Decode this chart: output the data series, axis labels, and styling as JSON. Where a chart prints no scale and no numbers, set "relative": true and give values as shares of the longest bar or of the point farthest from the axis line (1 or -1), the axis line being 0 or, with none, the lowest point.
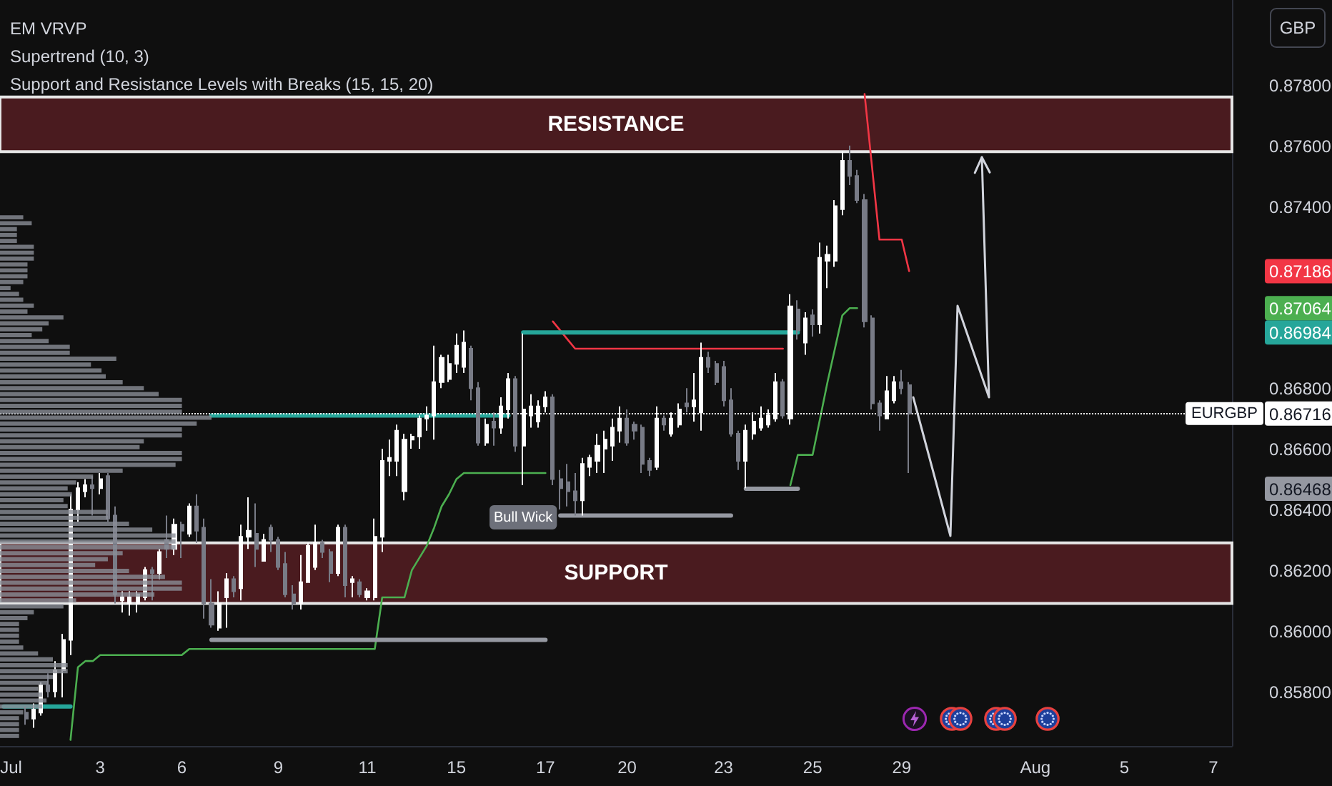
{
  "chart_data": [
    {
      "type": "candlestick",
      "annotations": [
        "EM VRVP",
        "Supertrend (10, 3)",
        "Support and Resistance Levels with Breaks (15, 15, 20)",
        {
          "text": "Bull Wick",
          "y": 0.8648
        }
      ],
      "ylabel": "GBP",
      "categories": [
        null,
        "Jul",
        null,
        null,
        null,
        null,
        null,
        null,
        null,
        null,
        null,
        null,
        null,
        "3",
        null,
        null,
        null,
        null,
        null,
        null,
        null,
        null,
        null,
        null,
        "6",
        null,
        null,
        null,
        null,
        null,
        null,
        null,
        null,
        null,
        null,
        null,
        null,
        "9",
        null,
        null,
        null,
        null,
        null,
        null,
        null,
        null,
        null,
        null,
        null,
        "11",
        null,
        null,
        null,
        null,
        null,
        null,
        null,
        null,
        null,
        null,
        null,
        "15",
        null,
        null,
        null,
        null,
        null,
        null,
        null,
        null,
        null,
        null,
        null,
        "17",
        null,
        null,
        null,
        null,
        null,
        null,
        null,
        null,
        null,
        null,
        "20",
        null,
        null,
        null,
        null,
        null,
        null,
        null,
        null,
        null,
        null,
        null,
        null,
        "23",
        null,
        null,
        null,
        null,
        null,
        null,
        null,
        null,
        null,
        null,
        null,
        "25",
        null,
        null,
        null,
        null,
        null,
        null,
        null,
        null,
        null,
        null,
        null,
        "29",
        null,
        null,
        null,
        null,
        null,
        null,
        null,
        null,
        null,
        null,
        null,
        null,
        null,
        null,
        null,
        null,
        null,
        "Aug",
        null,
        null,
        null,
        null,
        null,
        null,
        null,
        null,
        null,
        null,
        null,
        "5",
        null,
        null,
        null,
        null,
        null,
        null,
        null,
        null,
        null,
        null,
        null,
        "7",
        null,
        null
      ],
      "ohlc": [
        null,
        null,
        null,
        [
          0.8573,
          0.8575,
          0.8569,
          0.8571
        ],
        [
          0.8571,
          0.8576,
          0.8568,
          0.8574
        ],
        [
          0.8573,
          0.8583,
          0.8572,
          0.8582
        ],
        [
          0.8582,
          0.8586,
          0.8578,
          0.858
        ],
        [
          0.858,
          0.859,
          0.8578,
          0.8587
        ],
        [
          0.8587,
          0.8599,
          0.8578,
          0.8597
        ],
        [
          0.8597,
          0.8645,
          0.8592,
          0.864
        ],
        [
          0.864,
          0.8649,
          0.8636,
          0.8647
        ],
        [
          0.8646,
          0.865,
          0.8644,
          0.8648
        ],
        [
          0.8648,
          0.8651,
          0.8638,
          0.8647
        ],
        [
          0.8647,
          0.8652,
          0.8645,
          0.865
        ],
        [
          0.8651,
          0.8652,
          0.8636,
          0.8637
        ],
        [
          0.8638,
          0.8641,
          0.8609,
          0.8612
        ],
        [
          0.861,
          0.8613,
          0.8606,
          0.8611
        ],
        [
          0.8609,
          0.8613,
          0.8605,
          0.8611
        ],
        [
          0.8609,
          0.8613,
          0.8606,
          0.8612
        ],
        [
          0.8611,
          0.8621,
          0.861,
          0.862
        ],
        [
          0.862,
          0.8621,
          0.861,
          0.8619
        ],
        [
          0.8619,
          0.8627,
          0.8617,
          0.8626
        ],
        [
          0.863,
          0.8638,
          0.8624,
          0.8627
        ],
        [
          0.8627,
          0.8637,
          0.8625,
          0.8635
        ],
        [
          0.8635,
          0.8636,
          0.8624,
          0.8633
        ],
        [
          0.8632,
          0.8642,
          0.8631,
          0.8641
        ],
        [
          0.8641,
          0.8645,
          0.8629,
          0.8633
        ],
        [
          0.8634,
          0.8637,
          0.8604,
          0.8609
        ],
        [
          0.8609,
          0.8617,
          0.8601,
          0.8602
        ],
        [
          0.8601,
          0.8613,
          0.86,
          0.8609
        ],
        [
          0.8611,
          0.8619,
          0.8601,
          0.8617
        ],
        [
          0.8617,
          0.8618,
          0.8611,
          0.8613
        ],
        [
          0.8614,
          0.8635,
          0.861,
          0.8631
        ],
        [
          0.8631,
          0.8644,
          0.8627,
          0.8633
        ],
        [
          0.8632,
          0.8642,
          0.8621,
          0.8627
        ],
        [
          0.8623,
          0.8632,
          0.8623,
          0.863
        ],
        [
          0.8634,
          0.8635,
          0.8626,
          0.863
        ],
        [
          0.863,
          0.8631,
          0.862,
          0.8621
        ],
        [
          0.8622,
          0.8626,
          0.8611,
          0.8612
        ],
        [
          0.8612,
          0.8615,
          0.8607,
          0.8609
        ],
        [
          0.8609,
          0.8625,
          0.8607,
          0.8616
        ],
        [
          0.8616,
          0.8629,
          0.8616,
          0.8628
        ],
        [
          0.8621,
          0.8635,
          0.862,
          0.8629
        ],
        [
          0.8629,
          0.863,
          0.8624,
          0.8626
        ],
        [
          0.8626,
          0.8627,
          0.8616,
          0.8619
        ],
        [
          0.8619,
          0.8635,
          0.8618,
          0.8634
        ],
        [
          0.8634,
          0.8635,
          0.8611,
          0.8615
        ],
        [
          0.8616,
          0.8618,
          0.8611,
          0.8617
        ],
        [
          0.8616,
          0.8617,
          0.8611,
          0.8612
        ],
        [
          0.8611,
          0.8614,
          0.861,
          0.8613
        ],
        [
          0.8611,
          0.8637,
          0.861,
          0.8631
        ],
        [
          0.8631,
          0.866,
          0.8626,
          0.8656
        ],
        [
          0.8656,
          0.8663,
          0.8651,
          0.8657
        ],
        [
          0.8656,
          0.8668,
          0.8651,
          0.8666
        ],
        [
          0.8646,
          0.8665,
          0.8643,
          0.8663
        ],
        [
          0.8663,
          0.8665,
          0.866,
          0.8664
        ],
        [
          0.8664,
          0.8671,
          0.866,
          0.867
        ],
        [
          0.867,
          0.8674,
          0.8666,
          0.8671
        ],
        [
          0.8671,
          0.8694,
          0.8663,
          0.8682
        ],
        [
          0.8682,
          0.8691,
          0.868,
          0.869
        ],
        [
          0.8683,
          0.8691,
          0.8682,
          0.8688
        ],
        [
          0.8688,
          0.8698,
          0.8685,
          0.8694
        ],
        [
          0.8687,
          0.8699,
          0.8685,
          0.8695
        ],
        [
          0.8693,
          0.8694,
          0.8676,
          0.868
        ],
        [
          0.868,
          0.8682,
          0.8661,
          0.8662
        ],
        [
          0.8662,
          0.867,
          0.8661,
          0.8668
        ],
        [
          0.8669,
          0.8672,
          0.8661,
          0.8667
        ],
        [
          0.8667,
          0.8677,
          0.8665,
          0.8674
        ],
        [
          0.8673,
          0.8685,
          0.867,
          0.8683
        ],
        [
          0.8683,
          0.8684,
          0.8659,
          0.8661
        ],
        [
          0.8661,
          0.8698,
          0.8648,
          0.8673
        ],
        [
          0.8671,
          0.8678,
          0.8667,
          0.8674
        ],
        [
          0.8669,
          0.8676,
          0.8667,
          0.8674
        ],
        [
          0.8674,
          0.8679,
          0.8672,
          0.8677
        ],
        [
          0.8677,
          0.8678,
          0.8648,
          0.865
        ],
        [
          0.865,
          0.8653,
          0.864,
          0.8647
        ],
        [
          0.8649,
          0.8655,
          0.8641,
          0.8646
        ],
        [
          0.8646,
          0.8652,
          0.8638,
          0.8643
        ],
        [
          0.8643,
          0.8657,
          0.8638,
          0.8655
        ],
        [
          0.8654,
          0.8658,
          0.8651,
          0.8657
        ],
        [
          0.8656,
          0.8665,
          0.8652,
          0.8661
        ],
        [
          0.866,
          0.8666,
          0.8652,
          0.8663
        ],
        [
          0.8661,
          0.867,
          0.8656,
          0.8667
        ],
        [
          0.8666,
          0.8674,
          0.8662,
          0.867
        ],
        [
          0.867,
          0.8673,
          0.8661,
          0.8662
        ],
        [
          0.8668,
          0.8669,
          0.8663,
          0.8666
        ],
        [
          0.8667,
          0.8668,
          0.8652,
          0.8655
        ],
        [
          0.8656,
          0.8657,
          0.8651,
          0.8653
        ],
        [
          0.8654,
          0.8674,
          0.8653,
          0.867
        ],
        [
          0.867,
          0.8671,
          0.8666,
          0.8668
        ],
        [
          0.8665,
          0.8672,
          0.8664,
          0.867
        ],
        [
          0.8668,
          0.8675,
          0.8667,
          0.8673
        ],
        [
          0.8675,
          0.868,
          0.8672,
          0.8674
        ],
        [
          0.8674,
          0.8685,
          0.8669,
          0.8676
        ],
        [
          0.8672,
          0.8695,
          0.8666,
          0.869
        ],
        [
          0.869,
          0.8692,
          0.8685,
          0.8687
        ],
        [
          0.8688,
          0.8689,
          0.8681,
          0.8682
        ],
        [
          0.8687,
          0.8689,
          0.8674,
          0.8676
        ],
        [
          0.8676,
          0.868,
          0.8664,
          0.8665
        ],
        [
          0.8665,
          0.8666,
          0.8653,
          0.8656
        ],
        [
          0.8656,
          0.8668,
          0.8647,
          0.8666
        ],
        [
          0.8665,
          0.8672,
          0.8663,
          0.8669
        ],
        [
          0.8667,
          0.8674,
          0.8666,
          0.867
        ],
        [
          0.8668,
          0.8673,
          0.8667,
          0.8671
        ],
        [
          0.867,
          0.8685,
          0.8669,
          0.8682
        ],
        [
          0.8682,
          0.8683,
          0.867,
          0.8671
        ],
        [
          0.867,
          0.8711,
          0.8668,
          0.8707
        ],
        [
          0.8706,
          0.8709,
          0.8696,
          0.8699
        ],
        [
          0.8695,
          0.8705,
          0.8691,
          0.8703
        ],
        [
          0.8704,
          0.8706,
          0.8697,
          0.8701
        ],
        [
          0.8701,
          0.8728,
          0.8698,
          0.8723
        ],
        [
          0.8722,
          0.8727,
          0.8713,
          0.8724
        ],
        [
          0.8722,
          0.8742,
          0.872,
          0.874
        ],
        [
          0.8739,
          0.8758,
          0.8737,
          0.8755
        ],
        [
          0.8755,
          0.876,
          0.8747,
          0.875
        ],
        [
          0.875,
          0.8752,
          0.8741,
          0.8742
        ],
        [
          0.8742,
          0.8744,
          0.87,
          0.8702
        ],
        [
          0.8703,
          0.8704,
          0.8673,
          0.8675
        ],
        [
          0.8675,
          0.8676,
          0.8666,
          0.8671
        ],
        [
          0.867,
          0.8684,
          0.867,
          0.8679
        ],
        [
          0.8676,
          0.8684,
          0.8675,
          0.8682
        ],
        [
          0.8682,
          0.8686,
          0.8678,
          0.868
        ],
        [
          0.8681,
          0.8682,
          0.8652,
          0.86716
        ],
        null,
        null,
        null,
        null,
        null,
        null,
        null,
        null,
        null,
        null,
        null,
        null,
        null,
        null,
        null,
        null,
        null,
        null,
        null,
        null,
        null,
        null,
        null,
        null,
        null,
        null,
        null,
        null,
        null,
        null,
        null,
        null,
        null,
        null,
        null,
        null,
        null,
        null,
        null,
        null,
        null,
        null,
        null
      ],
      "colors": [
        null,
        null,
        null,
        "#787b86",
        "#ffffff",
        "#ffffff",
        "#787b86",
        "#ffffff",
        "#ffffff",
        "#ffffff",
        "#ffffff",
        "#ffffff",
        "#787b86",
        "#ffffff",
        "#787b86",
        "#787b86",
        "#ffffff",
        "#ffffff",
        "#ffffff",
        "#ffffff",
        "#787b86",
        "#ffffff",
        "#787b86",
        "#ffffff",
        "#787b86",
        "#ffffff",
        "#787b86",
        "#787b86",
        "#787b86",
        "#ffffff",
        "#ffffff",
        "#787b86",
        "#ffffff",
        "#ffffff",
        "#787b86",
        "#ffffff",
        "#787b86",
        "#787b86",
        "#787b86",
        "#787b86",
        "#ffffff",
        "#ffffff",
        "#ffffff",
        "#787b86",
        "#787b86",
        "#ffffff",
        "#787b86",
        "#ffffff",
        "#787b86",
        "#ffffff",
        "#ffffff",
        "#ffffff",
        "#ffffff",
        "#ffffff",
        "#ffffff",
        "#ffffff",
        "#ffffff",
        "#ffffff",
        "#ffffff",
        "#ffffff",
        "#ffffff",
        "#ffffff",
        "#ffffff",
        "#787b86",
        "#787b86",
        "#ffffff",
        "#787b86",
        "#ffffff",
        "#ffffff",
        "#787b86",
        "#ffffff",
        "#ffffff",
        "#ffffff",
        "#ffffff",
        "#787b86",
        "#787b86",
        "#787b86",
        "#787b86",
        "#ffffff",
        "#ffffff",
        "#ffffff",
        "#ffffff",
        "#ffffff",
        "#ffffff",
        "#787b86",
        "#787b86",
        "#787b86",
        "#787b86",
        "#ffffff",
        "#787b86",
        "#ffffff",
        "#ffffff",
        "#787b86",
        "#ffffff",
        "#ffffff",
        "#787b86",
        "#787b86",
        "#787b86",
        "#787b86",
        "#787b86",
        "#ffffff",
        "#ffffff",
        "#ffffff",
        "#ffffff",
        "#ffffff",
        "#787b86",
        "#ffffff",
        "#787b86",
        "#ffffff",
        "#787b86",
        "#ffffff",
        "#ffffff",
        "#ffffff",
        "#ffffff",
        "#787b86",
        "#787b86",
        "#787b86",
        "#787b86",
        "#787b86",
        "#ffffff",
        "#ffffff",
        "#787b86",
        "#787b86",
        null,
        null,
        null,
        null,
        null,
        null,
        null,
        null,
        null,
        null,
        null,
        null,
        null,
        null,
        null,
        null,
        null,
        null,
        null,
        null,
        null,
        null,
        null,
        null,
        null,
        null,
        null,
        null,
        null,
        null,
        null,
        null,
        null,
        null,
        null,
        null,
        null,
        null,
        null,
        null,
        null,
        null,
        null
      ],
      "series": [
        {
          "type": "line",
          "color": "#4caf50",
          "values": [
            null,
            null,
            null,
            null,
            null,
            null,
            null,
            null,
            null,
            0.8564,
            0.8588,
            0.859,
            0.859,
            0.8592,
            0.8592,
            0.8592,
            0.8592,
            0.8592,
            0.8592,
            0.8592,
            0.8592,
            0.8592,
            0.8592,
            0.8592,
            0.8592,
            0.8594,
            0.8594,
            0.8594,
            0.8594,
            0.8594,
            0.8594,
            0.8594,
            0.8594,
            0.8594,
            0.8594,
            0.8594,
            0.8594,
            0.8594,
            0.8594,
            0.8594,
            0.8594,
            0.8594,
            0.8594,
            0.8594,
            0.8594,
            0.8594,
            0.8594,
            0.8594,
            0.8594,
            0.8594,
            0.8594,
            0.8611,
            0.8611,
            0.8611,
            0.8611,
            0.862,
            0.8624,
            0.8628,
            0.8634,
            0.8641,
            0.8645,
            0.865,
            0.8652,
            0.8652,
            0.8652,
            0.8652,
            0.8652,
            0.8652,
            0.8652,
            0.8652,
            0.8652,
            0.8652,
            0.8652,
            0.8652,
            null,
            null,
            null,
            null,
            null,
            null,
            null,
            null,
            null,
            null,
            null,
            null,
            null,
            null,
            null,
            null,
            null,
            null,
            null,
            null,
            null,
            null,
            null,
            null,
            null,
            null,
            null,
            null,
            null,
            null,
            null,
            null,
            0.8648,
            0.8658,
            0.8658,
            0.8658,
            0.867,
            0.8682,
            0.8693,
            0.8704,
            0.87064,
            0.87064,
            null,
            null,
            null,
            null,
            null,
            null,
            null,
            null,
            null,
            null,
            null,
            null,
            null,
            null,
            null,
            null,
            null,
            null,
            null,
            null,
            null,
            null,
            null,
            null,
            null,
            null,
            null,
            null,
            null,
            null,
            null,
            null,
            null,
            null,
            null,
            null,
            null,
            null,
            null,
            null,
            null,
            null,
            null,
            null,
            null,
            null,
            null,
            null,
            null,
            null
          ]
        },
        {
          "type": "line",
          "color": "#f23645",
          "values": [
            null,
            null,
            null,
            null,
            null,
            null,
            null,
            null,
            null,
            null,
            null,
            null,
            null,
            null,
            null,
            null,
            null,
            null,
            null,
            null,
            null,
            null,
            null,
            null,
            null,
            null,
            null,
            null,
            null,
            null,
            null,
            null,
            null,
            null,
            null,
            null,
            null,
            null,
            null,
            null,
            null,
            null,
            null,
            null,
            null,
            null,
            null,
            null,
            null,
            null,
            null,
            null,
            null,
            null,
            null,
            null,
            null,
            null,
            null,
            null,
            null,
            null,
            null,
            null,
            null,
            null,
            null,
            null,
            null,
            null,
            null,
            null,
            null,
            null,
            0.8702,
            0.8699,
            0.8696,
            0.8693,
            0.8693,
            0.8693,
            0.8693,
            0.8693,
            0.8693,
            0.8693,
            0.8693,
            0.8693,
            0.8693,
            0.8693,
            0.8693,
            0.8693,
            0.8693,
            0.8693,
            0.8693,
            0.8693,
            0.8693,
            0.8693,
            0.8693,
            0.8693,
            0.8693,
            0.8693,
            0.8693,
            0.8693,
            0.8693,
            0.8693,
            0.8693,
            0.8693,
            null,
            null,
            null,
            null,
            null,
            null,
            null,
            null,
            null,
            null,
            0.8777,
            0.8753,
            0.8729,
            0.8729,
            0.8729,
            0.8729,
            0.87186,
            null,
            null,
            null,
            null,
            null,
            null,
            null,
            null,
            null,
            null,
            null,
            null,
            null,
            null,
            null,
            null,
            null,
            null,
            null,
            null,
            null,
            null,
            null,
            null,
            null,
            null,
            null,
            null,
            null,
            null,
            null,
            null,
            null,
            null,
            null,
            null,
            null,
            null,
            null,
            null,
            null,
            null,
            null
          ]
        },
        {
          "type": "line",
          "color": "#26a69a",
          "values": [
            0.8575,
            0.8575,
            0.8575,
            0.8575,
            0.8575,
            0.8575,
            0.8575,
            0.8575,
            0.8575,
            0.8575,
            null,
            null,
            null,
            null,
            null,
            null,
            null,
            null,
            null,
            null,
            null,
            null,
            null,
            null,
            null,
            null,
            null,
            null,
            0.8671,
            0.8671,
            0.8671,
            0.8671,
            0.8671,
            0.8671,
            0.8671,
            0.8671,
            0.8671,
            0.8671,
            0.8671,
            0.8671,
            0.8671,
            0.8671,
            0.8671,
            0.8671,
            0.8671,
            0.8671,
            0.8671,
            0.8671,
            0.8671,
            0.8671,
            0.8671,
            0.8671,
            0.8671,
            0.8671,
            0.8671,
            0.8671,
            0.8671,
            0.8671,
            0.8671,
            0.8671,
            0.8671,
            0.8671,
            0.8671,
            0.8671,
            0.8671,
            0.8671,
            0.8671,
            0.8671,
            0.8671,
            null,
            0.86984,
            0.86984,
            0.86984,
            0.86984,
            0.86984,
            0.86984,
            0.86984,
            0.86984,
            0.86984,
            0.86984,
            0.86984,
            0.86984,
            0.86984,
            0.86984,
            0.86984,
            0.86984,
            0.86984,
            0.86984,
            0.86984,
            0.86984,
            0.86984,
            0.86984,
            0.86984,
            0.86984,
            0.86984,
            0.86984,
            0.86984,
            0.86984,
            0.86984,
            0.86984,
            0.86984,
            0.86984,
            0.86984,
            0.86984,
            0.86984,
            0.86984,
            0.86984,
            0.86984,
            null,
            null,
            null,
            null,
            null,
            null,
            null,
            null,
            null,
            null,
            null,
            null,
            null,
            null,
            null,
            null,
            null,
            null,
            null,
            null,
            null,
            null,
            null,
            null,
            null,
            null,
            null,
            null,
            null,
            null,
            null,
            null,
            null,
            null,
            null,
            null,
            null,
            null,
            null,
            null,
            null,
            null,
            null,
            null,
            null,
            null,
            null,
            null,
            null,
            null,
            null,
            null,
            null,
            null,
            null,
            null,
            null,
            null
          ]
        },
        {
          "type": "line",
          "color": "#9598a1",
          "values": [
            null,
            null,
            null,
            null,
            null,
            null,
            null,
            null,
            null,
            null,
            null,
            null,
            null,
            null,
            null,
            null,
            null,
            null,
            null,
            null,
            null,
            null,
            null,
            null,
            null,
            null,
            null,
            null,
            0.8597,
            0.8597,
            0.8597,
            0.8597,
            0.8597,
            0.8597,
            0.8597,
            0.8597,
            0.8597,
            0.8597,
            0.8597,
            0.8597,
            0.8597,
            0.8597,
            0.8597,
            0.8597,
            0.8597,
            0.8597,
            0.8597,
            0.8597,
            0.8597,
            0.8597,
            0.8597,
            0.8597,
            0.8597,
            0.8597,
            0.8597,
            0.8597,
            0.8597,
            0.8597,
            0.8597,
            0.8597,
            0.8597,
            0.8597,
            0.8597,
            0.8597,
            0.8597,
            0.8597,
            0.8597,
            0.8597,
            0.8597,
            0.8597,
            0.8597,
            0.8597,
            0.8597,
            0.8597,
            null,
            0.8638,
            0.8638,
            0.8638,
            0.8638,
            0.8638,
            0.8638,
            0.8638,
            0.8638,
            0.8638,
            0.8638,
            0.8638,
            0.8638,
            0.8638,
            0.8638,
            0.8638,
            0.8638,
            0.8638,
            0.8638,
            0.8638,
            0.8638,
            0.8638,
            0.8638,
            0.8638,
            0.8638,
            null,
            0.86468,
            0.86468,
            0.86468,
            0.86468,
            0.86468,
            0.86468,
            0.86468,
            0.86468,
            null,
            null,
            null,
            null,
            null,
            null,
            null,
            null,
            null,
            null,
            null,
            null,
            null,
            null,
            null,
            null,
            null,
            null,
            null,
            null,
            null,
            null,
            null,
            null,
            null,
            null,
            null,
            null,
            null,
            null,
            null,
            null,
            null,
            null,
            null,
            null,
            null,
            null,
            null,
            null,
            null,
            null,
            null,
            null,
            null,
            null,
            null,
            null,
            null,
            null,
            null,
            null,
            null,
            null,
            null,
            null,
            null,
            null
          ]
        }
      ],
      "ylim": [
        0.8562,
        0.8808
      ],
      "yticks": [
        {
          "value": 0.858,
          "label": "0.85800"
        },
        {
          "value": 0.86,
          "label": "0.86000"
        },
        {
          "value": 0.862,
          "label": "0.86200"
        },
        {
          "value": 0.864,
          "label": "0.86400"
        },
        0.86468,
        {
          "value": 0.866,
          "label": "0.86600"
        },
        0.86716,
        {
          "value": 0.868,
          "label": "0.86800"
        },
        0.86984,
        0.87064,
        0.87186,
        {
          "value": 0.874,
          "label": "0.87400"
        },
        {
          "value": 0.876,
          "label": "0.87600"
        },
        {
          "value": 0.878,
          "label": "0.87800"
        }
      ],
      "ref_lines": [
        {
          "axis": "y",
          "value": 0.86716,
          "label": "EURGBP",
          "color": "#ffffff",
          "line_style": "dotted"
        }
      ],
      "bands": [
        {
          "axis": "y",
          "from": 0.8758,
          "to": 0.8776,
          "label": "RESISTANCE",
          "color": "#4a1b1f"
        },
        {
          "axis": "y",
          "from": 0.8609,
          "to": 0.8629,
          "label": "SUPPORT",
          "color": "#4a1b1f"
        }
      ]
    },
    {
      "type": "bar",
      "orientation": "horizontal",
      "relative": true,
      "color": "#8a8d96",
      "categories": [
        null,
        null,
        null,
        null,
        null,
        null,
        null,
        null,
        null,
        null,
        null,
        null,
        null,
        null,
        null,
        null,
        null,
        null,
        null,
        null,
        null,
        null,
        null,
        null,
        null,
        null,
        null,
        null,
        null,
        null,
        null,
        null,
        null,
        null,
        null,
        null,
        null,
        null,
        null,
        null,
        null,
        null,
        null,
        null,
        null,
        null,
        null,
        null,
        null,
        null,
        null,
        null,
        null,
        null,
        null,
        null,
        null,
        null,
        null,
        null,
        null,
        null,
        null,
        null,
        null,
        null,
        null,
        null,
        null,
        null,
        null,
        null,
        null,
        null,
        null,
        null,
        null,
        null,
        null,
        null,
        null,
        null,
        null,
        null,
        null,
        null,
        null,
        null,
        null
      ],
      "values": [
        0.11,
        0.15,
        0.08,
        0.08,
        0.08,
        0.16,
        0.16,
        0.16,
        0.13,
        0.13,
        0.13,
        0.11,
        0.05,
        0.09,
        0.11,
        0.16,
        0.13,
        0.3,
        0.23,
        0.2,
        0.15,
        0.23,
        0.33,
        0.33,
        0.55,
        0.43,
        0.48,
        0.5,
        0.58,
        0.68,
        0.75,
        0.86,
        0.86,
        0.86,
        1,
        0.93,
        0.86,
        0.86,
        0.68,
        0.66,
        0.86,
        0.86,
        0.83,
        0.58,
        0.44,
        0.36,
        0.32,
        0.34,
        0.3,
        0.32,
        0.51,
        0.51,
        0.61,
        0.72,
        0.83,
        0.83,
        0.83,
        0.58,
        0.51,
        0.45,
        0.61,
        0.78,
        0.86,
        0.86,
        0.73,
        0.36,
        0.3,
        0.16,
        0.13,
        0.09,
        0.09,
        0.09,
        0.09,
        0.11,
        0.18,
        0.25,
        0.32,
        0.32,
        0.25,
        0.23,
        0.18,
        0.2,
        0.22,
        0.2,
        0.11,
        0.09,
        0.09,
        0.09,
        0.09
      ]
    }
  ]
}
